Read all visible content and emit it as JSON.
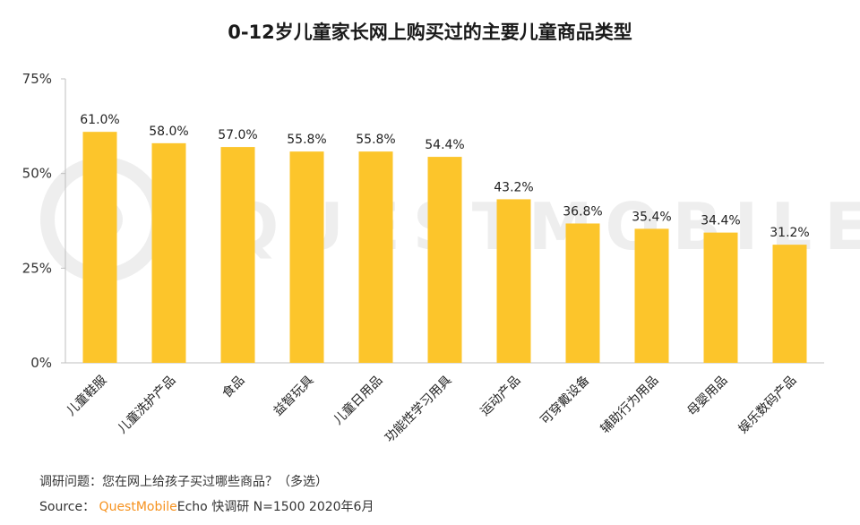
{
  "chart_data": {
    "type": "bar",
    "title": "0-12岁儿童家长网上购买过的主要儿童商品类型",
    "categories": [
      "儿童鞋服",
      "儿童洗护产品",
      "食品",
      "益智玩具",
      "儿童日用品",
      "功能性学习用具",
      "运动产品",
      "可穿戴设备",
      "辅助行为用品",
      "母婴用品",
      "娱乐数码产品"
    ],
    "values": [
      61.0,
      58.0,
      57.0,
      55.8,
      55.8,
      54.4,
      43.2,
      36.8,
      35.4,
      34.4,
      31.2
    ],
    "value_labels": [
      "61.0%",
      "58.0%",
      "57.0%",
      "55.8%",
      "55.8%",
      "54.4%",
      "43.2%",
      "36.8%",
      "35.4%",
      "34.4%",
      "31.2%"
    ],
    "yticks": [
      "0%",
      "25%",
      "50%",
      "75%"
    ],
    "ytick_values": [
      0,
      25,
      50,
      75
    ],
    "ylim": [
      0,
      75
    ],
    "xlabel": "",
    "ylabel": "",
    "bar_color": "#fcc52b",
    "grid": false,
    "legend": "none"
  },
  "watermark": "QUESTMOBILE",
  "footer": {
    "question": "调研问题：您在网上给孩子买过哪些商品？（多选）",
    "source_prefix": "Source：",
    "brand": "QuestMobile",
    "source_suffix": "Echo 快调研 N=1500 2020年6月"
  }
}
